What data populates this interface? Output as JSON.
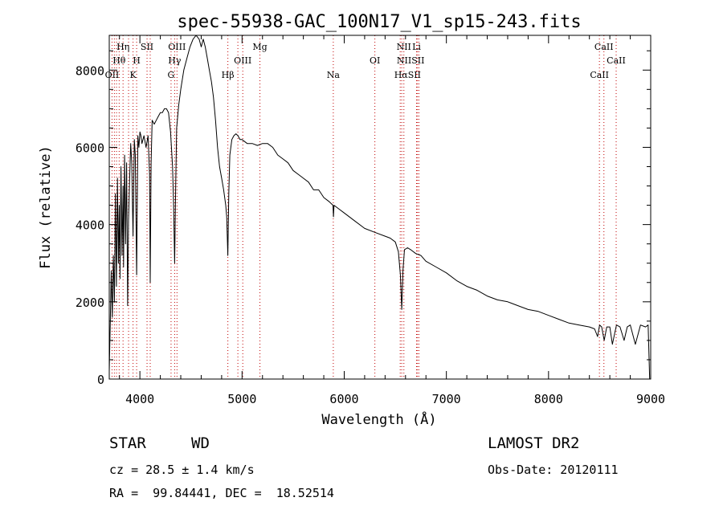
{
  "chart_data": {
    "type": "line",
    "title": "spec-55938-GAC_100N17_V1_sp15-243.fits",
    "xlabel": "Wavelength (Å)",
    "ylabel": "Flux (relative)",
    "xlim": [
      3700,
      9000
    ],
    "ylim": [
      0,
      8900
    ],
    "xticks": [
      4000,
      5000,
      6000,
      7000,
      8000,
      9000
    ],
    "yticks": [
      0,
      2000,
      4000,
      6000,
      8000
    ],
    "grid": false,
    "line_color": "#000000",
    "marker_line_color": "#c00000",
    "series": [
      {
        "x": [
          3700,
          3710,
          3720,
          3730,
          3740,
          3750,
          3760,
          3770,
          3780,
          3790,
          3798,
          3805,
          3815,
          3825,
          3835,
          3840,
          3850,
          3860,
          3870,
          3880,
          3889,
          3900,
          3910,
          3920,
          3933,
          3945,
          3955,
          3968,
          3980,
          3990,
          4000,
          4010,
          4020,
          4040,
          4060,
          4080,
          4095,
          4101,
          4110,
          4120,
          4140,
          4160,
          4180,
          4200,
          4220,
          4240,
          4260,
          4280,
          4300,
          4320,
          4330,
          4340,
          4350,
          4360,
          4380,
          4400,
          4430,
          4460,
          4490,
          4520,
          4550,
          4580,
          4600,
          4620,
          4640,
          4660,
          4680,
          4700,
          4720,
          4740,
          4760,
          4780,
          4800,
          4820,
          4840,
          4850,
          4861,
          4870,
          4880,
          4900,
          4920,
          4940,
          4960,
          4980,
          5000,
          5050,
          5100,
          5150,
          5200,
          5250,
          5300,
          5350,
          5400,
          5450,
          5500,
          5550,
          5600,
          5650,
          5700,
          5750,
          5800,
          5850,
          5890,
          5895,
          5900,
          5950,
          6000,
          6100,
          6200,
          6300,
          6400,
          6450,
          6500,
          6530,
          6550,
          6563,
          6575,
          6590,
          6620,
          6650,
          6700,
          6750,
          6800,
          6900,
          7000,
          7100,
          7200,
          7300,
          7400,
          7500,
          7600,
          7700,
          7800,
          7900,
          8000,
          8100,
          8200,
          8300,
          8400,
          8450,
          8480,
          8500,
          8520,
          8545,
          8570,
          8600,
          8625,
          8665,
          8700,
          8740,
          8770,
          8800,
          8850,
          8900,
          8950,
          8975,
          8990
        ],
        "y": [
          200,
          1500,
          2800,
          1600,
          3200,
          2000,
          4800,
          2400,
          5200,
          3000,
          4500,
          2600,
          5500,
          3200,
          5000,
          2900,
          5800,
          3500,
          5600,
          1900,
          4100,
          5200,
          6100,
          5600,
          3700,
          6200,
          5800,
          2700,
          6300,
          6000,
          6400,
          6300,
          6100,
          6300,
          6000,
          6300,
          5300,
          2500,
          5600,
          6700,
          6600,
          6700,
          6800,
          6900,
          6900,
          7000,
          7000,
          6900,
          6400,
          5500,
          4500,
          3000,
          5000,
          6500,
          7100,
          7500,
          8000,
          8300,
          8600,
          8800,
          8900,
          8800,
          8600,
          8800,
          8600,
          8300,
          8000,
          7700,
          7300,
          6700,
          6000,
          5500,
          5200,
          4900,
          4500,
          4200,
          3200,
          4800,
          5800,
          6200,
          6300,
          6350,
          6300,
          6200,
          6200,
          6100,
          6100,
          6050,
          6100,
          6100,
          6000,
          5800,
          5700,
          5600,
          5400,
          5300,
          5200,
          5100,
          4900,
          4900,
          4700,
          4600,
          4500,
          4200,
          4500,
          4400,
          4300,
          4100,
          3900,
          3800,
          3700,
          3650,
          3550,
          3300,
          2700,
          1800,
          2800,
          3350,
          3400,
          3350,
          3250,
          3200,
          3050,
          2900,
          2750,
          2550,
          2400,
          2300,
          2150,
          2050,
          2000,
          1900,
          1800,
          1750,
          1650,
          1550,
          1450,
          1400,
          1350,
          1300,
          1100,
          1400,
          1350,
          1000,
          1350,
          1350,
          900,
          1400,
          1350,
          1000,
          1350,
          1400,
          900,
          1400,
          1350,
          1400,
          0
        ]
      }
    ],
    "line_markers": [
      {
        "label": "Hη",
        "wavelength": 3835,
        "row": 0
      },
      {
        "label": "Hθ",
        "wavelength": 3797,
        "row": 1
      },
      {
        "label": "OII",
        "wavelength": 3727,
        "row": 2
      },
      {
        "label": "SII",
        "wavelength": 4070,
        "row": 0
      },
      {
        "label": "H",
        "wavelength": 3968,
        "row": 1
      },
      {
        "label": "K",
        "wavelength": 3933,
        "row": 2
      },
      {
        "label": "OIII",
        "wavelength": 4363,
        "row": 0
      },
      {
        "label": "Hγ",
        "wavelength": 4340,
        "row": 1
      },
      {
        "label": "G",
        "wavelength": 4305,
        "row": 2
      },
      {
        "label": "Mg",
        "wavelength": 5175,
        "row": 0
      },
      {
        "label": "OIII",
        "wavelength": 5007,
        "row": 1
      },
      {
        "label": "Hβ",
        "wavelength": 4861,
        "row": 2
      },
      {
        "label": "Na",
        "wavelength": 5893,
        "row": 2
      },
      {
        "label": "NII",
        "wavelength": 6584,
        "row": 0
      },
      {
        "label": "Li",
        "wavelength": 6708,
        "row": 0
      },
      {
        "label": "OI",
        "wavelength": 6300,
        "row": 1
      },
      {
        "label": "NIISII",
        "wavelength": 6650,
        "row": 1
      },
      {
        "label": "HαSII",
        "wavelength": 6620,
        "row": 2
      },
      {
        "label": "CaII",
        "wavelength": 8542,
        "row": 0
      },
      {
        "label": "CaII",
        "wavelength": 8662,
        "row": 1
      },
      {
        "label": "CaII",
        "wavelength": 8498,
        "row": 2
      }
    ],
    "marker_lines": [
      3727,
      3750,
      3771,
      3797,
      3835,
      3889,
      3933,
      3968,
      4070,
      4101,
      4305,
      4340,
      4363,
      4861,
      4959,
      5007,
      5175,
      5893,
      6300,
      6548,
      6563,
      6584,
      6708,
      6717,
      6731,
      8498,
      8542,
      8662
    ]
  },
  "info": {
    "object_class": "STAR",
    "subclass": "WD",
    "survey": "LAMOST DR2",
    "redshift": "cz = 28.5 ± 1.4 km/s",
    "obs_date": "Obs-Date: 20120111",
    "coords": "RA =  99.84441, DEC =  18.52514"
  }
}
